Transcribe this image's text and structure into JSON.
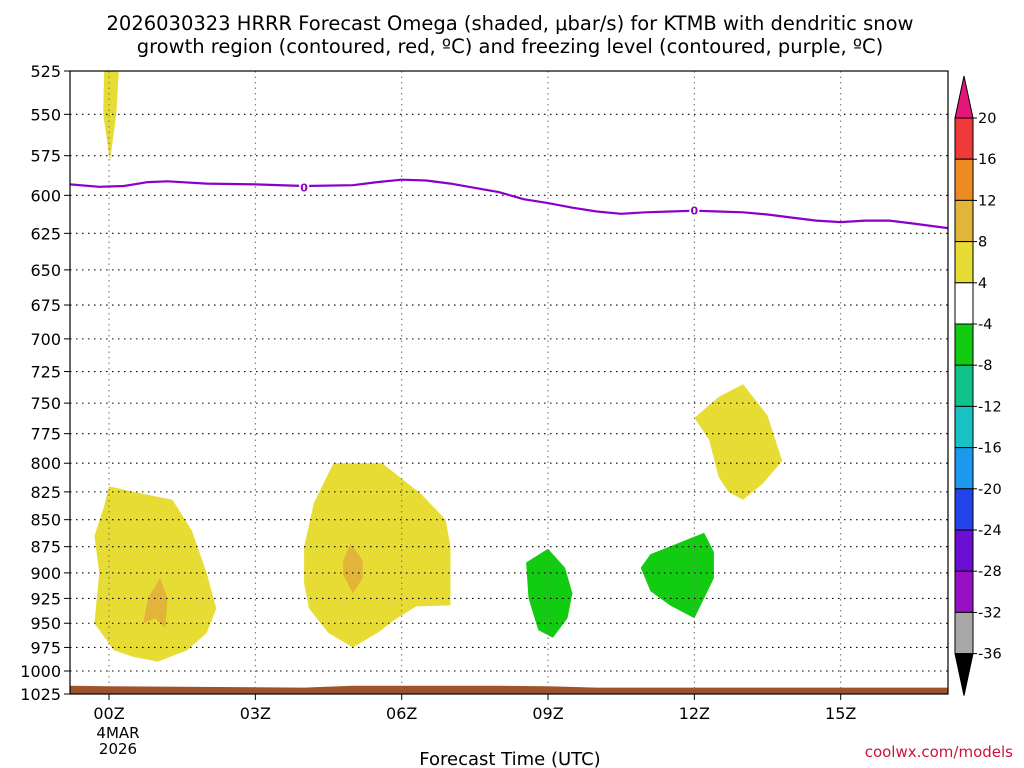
{
  "chart_data": {
    "type": "heatmap",
    "title_lines": [
      "2026030323 HRRR Forecast Omega (shaded, μbar/s) for KTMB with dendritic snow",
      "growth region (contoured, red, ºC) and freezing level (contoured, purple, ºC)"
    ],
    "xlabel": "Forecast Time (UTC)",
    "ylabel": "",
    "x_unit": "hours after 00Z 4 MAR 2026",
    "xlim": [
      -0.8,
      17.2
    ],
    "x_ticks": [
      {
        "value": 0,
        "label": "00Z"
      },
      {
        "value": 3,
        "label": "03Z"
      },
      {
        "value": 6,
        "label": "06Z"
      },
      {
        "value": 9,
        "label": "09Z"
      },
      {
        "value": 12,
        "label": "12Z"
      },
      {
        "value": 15,
        "label": "15Z"
      }
    ],
    "date_label": [
      "4MAR",
      "2026"
    ],
    "y_unit": "hPa",
    "ylim": [
      1025,
      525
    ],
    "y_ticks": [
      525,
      550,
      575,
      600,
      625,
      650,
      675,
      700,
      725,
      750,
      775,
      800,
      825,
      850,
      875,
      900,
      925,
      950,
      975,
      1000,
      1025
    ],
    "grid": true,
    "colorbar": {
      "position": "right",
      "labels": [
        "20",
        "16",
        "12",
        "8",
        "4",
        "-4",
        "-8",
        "-12",
        "-16",
        "-20",
        "-24",
        "-28",
        "-32",
        "-36"
      ],
      "colors": [
        "#f03a3a",
        "#ee8a22",
        "#e3b43a",
        "#e6dc34",
        "#ffffff",
        "#11cc11",
        "#0fc38a",
        "#19c2c2",
        "#1a99ee",
        "#2244e8",
        "#6b0fd4",
        "#9810c6",
        "#a8a8a8"
      ],
      "top_arrow_color": "#e6157a",
      "bottom_arrow_color": "#000000"
    },
    "omega_regions": [
      {
        "name": "upper-left-4to8",
        "color": "#e6dc34",
        "range": "4 to 8",
        "points": [
          [
            -0.1,
            525
          ],
          [
            0.2,
            525
          ],
          [
            0.15,
            550
          ],
          [
            0.02,
            578
          ],
          [
            -0.12,
            550
          ]
        ]
      },
      {
        "name": "left-4to8",
        "color": "#e6dc34",
        "range": "4 to 8",
        "points": [
          [
            0,
            820
          ],
          [
            0.5,
            825
          ],
          [
            1.3,
            832
          ],
          [
            1.7,
            860
          ],
          [
            2.0,
            900
          ],
          [
            2.2,
            935
          ],
          [
            2.0,
            960
          ],
          [
            1.6,
            978
          ],
          [
            1.0,
            990
          ],
          [
            0.5,
            985
          ],
          [
            0.1,
            978
          ],
          [
            -0.3,
            950
          ],
          [
            -0.2,
            900
          ],
          [
            -0.3,
            865
          ],
          [
            -0.1,
            838
          ]
        ]
      },
      {
        "name": "left-8to12",
        "color": "#e3b43a",
        "range": "8 to 12",
        "points": [
          [
            1.05,
            905
          ],
          [
            1.2,
            925
          ],
          [
            1.15,
            955
          ],
          [
            0.95,
            945
          ],
          [
            0.7,
            950
          ],
          [
            0.8,
            925
          ]
        ]
      },
      {
        "name": "center-4to8",
        "color": "#e6dc34",
        "range": "4 to 8",
        "points": [
          [
            4.6,
            800
          ],
          [
            5.6,
            800
          ],
          [
            6.4,
            827
          ],
          [
            6.9,
            850
          ],
          [
            7.0,
            875
          ],
          [
            7.0,
            932
          ],
          [
            6.3,
            933
          ],
          [
            5.9,
            945
          ],
          [
            5.5,
            960
          ],
          [
            5.0,
            975
          ],
          [
            4.5,
            960
          ],
          [
            4.1,
            935
          ],
          [
            4.0,
            910
          ],
          [
            4.0,
            875
          ],
          [
            4.2,
            835
          ]
        ]
      },
      {
        "name": "center-8to12",
        "color": "#e3b43a",
        "range": "8 to 12",
        "points": [
          [
            4.95,
            872
          ],
          [
            5.2,
            888
          ],
          [
            5.2,
            905
          ],
          [
            5.0,
            920
          ],
          [
            4.8,
            902
          ],
          [
            4.8,
            888
          ]
        ]
      },
      {
        "name": "green-09z",
        "color": "#11cc11",
        "range": "-8 to -4",
        "points": [
          [
            9.0,
            877
          ],
          [
            9.35,
            895
          ],
          [
            9.5,
            920
          ],
          [
            9.4,
            945
          ],
          [
            9.1,
            965
          ],
          [
            8.8,
            957
          ],
          [
            8.6,
            925
          ],
          [
            8.55,
            890
          ]
        ]
      },
      {
        "name": "green-12z",
        "color": "#11cc11",
        "range": "-8 to -4",
        "points": [
          [
            11.6,
            873
          ],
          [
            12.2,
            862
          ],
          [
            12.4,
            880
          ],
          [
            12.4,
            905
          ],
          [
            12.2,
            925
          ],
          [
            12.0,
            945
          ],
          [
            11.5,
            932
          ],
          [
            11.1,
            918
          ],
          [
            10.9,
            895
          ],
          [
            11.1,
            882
          ]
        ]
      },
      {
        "name": "right-4to8",
        "color": "#e6dc34",
        "range": "4 to 8",
        "points": [
          [
            12.0,
            762
          ],
          [
            12.5,
            745
          ],
          [
            13.0,
            735
          ],
          [
            13.5,
            760
          ],
          [
            13.8,
            798
          ],
          [
            13.4,
            818
          ],
          [
            13.0,
            832
          ],
          [
            12.7,
            825
          ],
          [
            12.5,
            812
          ],
          [
            12.3,
            780
          ]
        ]
      }
    ],
    "freezing_level": {
      "color": "#8a00c8",
      "label": "0",
      "label_points": [
        [
          4.0,
          595
        ],
        [
          12.0,
          610
        ]
      ],
      "points": [
        [
          -0.8,
          593
        ],
        [
          -0.2,
          594.5
        ],
        [
          0.3,
          594
        ],
        [
          0.8,
          591.5
        ],
        [
          1.2,
          591
        ],
        [
          2.0,
          592.5
        ],
        [
          3.0,
          593
        ],
        [
          4.0,
          594
        ],
        [
          5.0,
          593.5
        ],
        [
          5.5,
          591.5
        ],
        [
          6.0,
          590
        ],
        [
          6.5,
          590.5
        ],
        [
          7.0,
          592.5
        ],
        [
          8.0,
          598
        ],
        [
          8.5,
          602.5
        ],
        [
          9.0,
          605
        ],
        [
          9.5,
          608
        ],
        [
          10.0,
          610.5
        ],
        [
          10.5,
          612
        ],
        [
          11.0,
          611
        ],
        [
          11.5,
          610.5
        ],
        [
          12.0,
          610
        ],
        [
          12.5,
          610.5
        ],
        [
          13.0,
          611
        ],
        [
          13.5,
          612.5
        ],
        [
          14.0,
          614.5
        ],
        [
          14.5,
          616.5
        ],
        [
          15.0,
          617.5
        ],
        [
          15.5,
          616.5
        ],
        [
          16.0,
          616.5
        ],
        [
          16.5,
          618.5
        ],
        [
          17.2,
          621.5
        ]
      ]
    },
    "surface": {
      "color": "#a0522d",
      "points": [
        [
          -0.8,
          1016
        ],
        [
          0.0,
          1016.5
        ],
        [
          4.0,
          1018
        ],
        [
          5.0,
          1016
        ],
        [
          6.0,
          1016
        ],
        [
          8.0,
          1016
        ],
        [
          9.0,
          1016.5
        ],
        [
          10.0,
          1018
        ],
        [
          12.0,
          1018
        ],
        [
          14.0,
          1018
        ],
        [
          17.2,
          1018
        ]
      ]
    },
    "credit": "coolwx.com/models"
  }
}
